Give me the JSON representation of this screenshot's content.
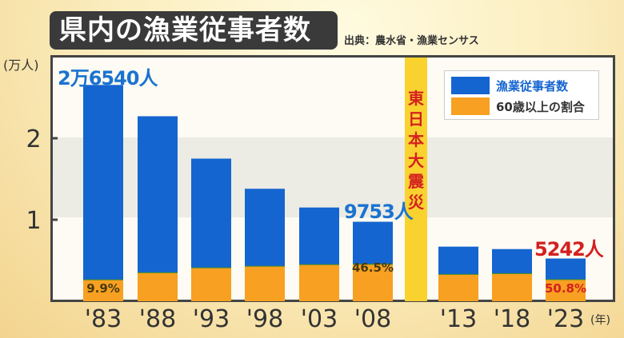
{
  "title": "県内の漁業従事者数",
  "source": "出典：農水省・漁業センサス",
  "chart_data": {
    "type": "bar",
    "title": "県内の漁業従事者数",
    "ylabel": "(万人)",
    "xlabel": "(年)",
    "ylim": [
      0,
      2.9
    ],
    "yticks": [
      1,
      2
    ],
    "ytick_labels": [
      "1",
      "2"
    ],
    "categories": [
      "'83",
      "'88",
      "'93",
      "'98",
      "'03",
      "'08",
      "'13",
      "'18",
      "'23"
    ],
    "series": [
      {
        "name": "漁業従事者数",
        "color": "#1565d0",
        "values": [
          2.654,
          2.27,
          1.75,
          1.38,
          1.15,
          0.9753,
          0.67,
          0.64,
          0.5242
        ]
      },
      {
        "name": "60歳以上の割合",
        "color": "#f7a021",
        "values": [
          0.263,
          0.35,
          0.41,
          0.43,
          0.45,
          0.4535,
          0.33,
          0.34,
          0.266
        ]
      }
    ],
    "annotations": {
      "total_labels": [
        {
          "index": 0,
          "text": "2万6540人",
          "color": "#1a73d0"
        },
        {
          "index": 5,
          "text": "9753人",
          "color": "#1a73d0"
        },
        {
          "index": 8,
          "text": "5242人",
          "color": "#d42020"
        }
      ],
      "pct_labels": [
        {
          "index": 0,
          "text": "9.9%"
        },
        {
          "index": 5,
          "text": "46.5%"
        },
        {
          "index": 8,
          "text": "50.8%"
        }
      ],
      "event": {
        "after_index": 5,
        "text": "東日本大震災",
        "color": "#f9d22f",
        "text_color": "#d42020"
      }
    },
    "legend_position": "top-right"
  }
}
